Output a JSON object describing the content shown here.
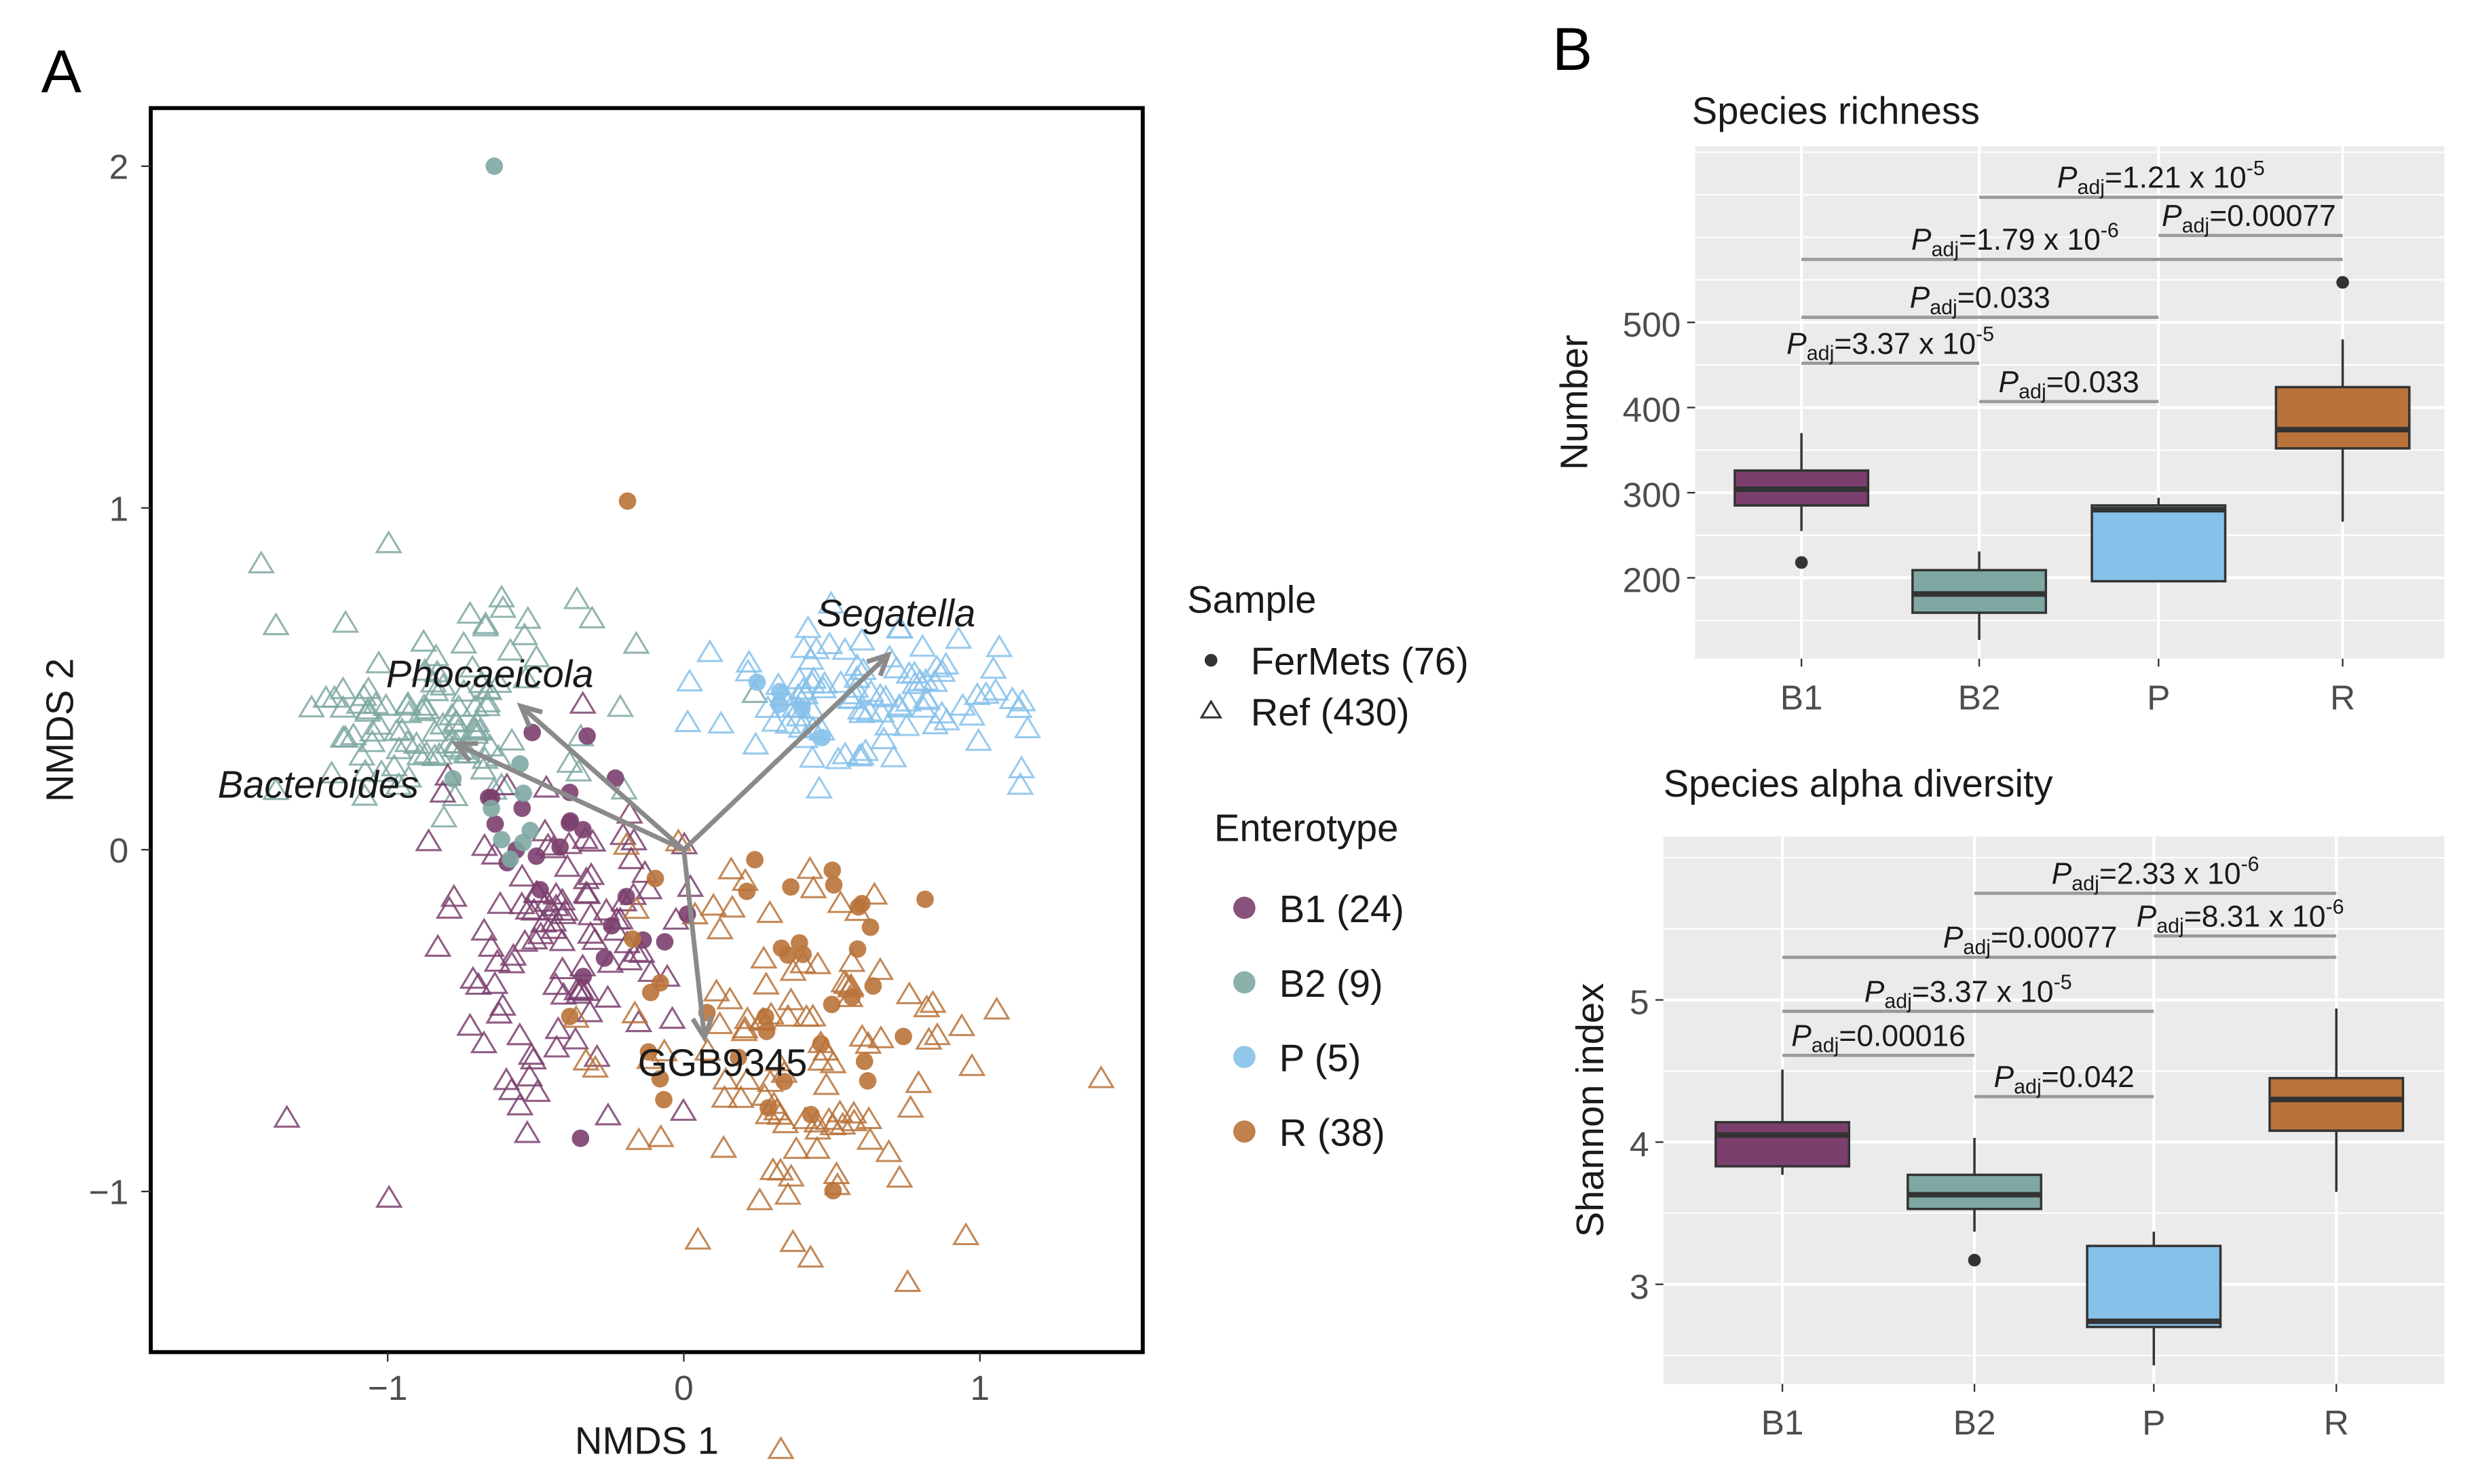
{
  "colors": {
    "B1": "#7b3f6e",
    "B2": "#7fa8a3",
    "P": "#86c1ea",
    "R": "#b9733a",
    "bar": "#9a9a9a",
    "panel": "#ebebeb"
  },
  "panels": {
    "a_label": "A",
    "b_label": "B"
  },
  "chart_data": [
    {
      "type": "scatter",
      "title": "",
      "xlabel": "NMDS 1",
      "ylabel": "NMDS 2",
      "xlim": [
        -1.8,
        1.55
      ],
      "ylim": [
        -1.47,
        2.17
      ],
      "xticks": [
        {
          "v": -1,
          "label": "−1"
        },
        {
          "v": 0,
          "label": "0"
        },
        {
          "v": 1,
          "label": "1"
        }
      ],
      "yticks": [
        {
          "v": -1,
          "label": "−1"
        },
        {
          "v": 0,
          "label": "0"
        },
        {
          "v": 1,
          "label": "1"
        },
        {
          "v": 2,
          "label": "2"
        }
      ],
      "grid": false,
      "legend": {
        "placement": "right",
        "sample_title": "Sample",
        "sample_items": [
          {
            "label": "FerMets (76)",
            "shape": "dot"
          },
          {
            "label": "Ref (430)",
            "shape": "triangle"
          }
        ],
        "enterotype_title": "Enterotype",
        "enterotype_items": [
          {
            "key": "B1",
            "label": "B1 (24)"
          },
          {
            "key": "B2",
            "label": "B2 (9)"
          },
          {
            "key": "P",
            "label": "P (5)"
          },
          {
            "key": "R",
            "label": "R (38)"
          }
        ]
      },
      "arrows": [
        {
          "label": "Segatella",
          "x": 0.69,
          "y": 0.57,
          "italic": true
        },
        {
          "label": "Phocaeicola",
          "x": -0.55,
          "y": 0.42,
          "italic": true
        },
        {
          "label": "Bacteroides",
          "x": -0.77,
          "y": 0.31,
          "italic": true
        },
        {
          "label": "GGB9345",
          "x": 0.07,
          "y": -0.55,
          "italic": false
        }
      ],
      "groups_approx": [
        {
          "enterotype": "B2",
          "sample": "Ref",
          "n": 110,
          "center": [
            -0.85,
            0.4
          ],
          "sd": [
            0.28,
            0.15
          ]
        },
        {
          "enterotype": "P",
          "sample": "Ref",
          "n": 100,
          "center": [
            0.65,
            0.45
          ],
          "sd": [
            0.28,
            0.11
          ]
        },
        {
          "enterotype": "B1",
          "sample": "Ref",
          "n": 110,
          "center": [
            -0.4,
            -0.25
          ],
          "sd": [
            0.22,
            0.22
          ]
        },
        {
          "enterotype": "R",
          "sample": "Ref",
          "n": 110,
          "center": [
            0.4,
            -0.62
          ],
          "sd": [
            0.32,
            0.28
          ]
        },
        {
          "enterotype": "B1",
          "sample": "FerMets",
          "n": 24,
          "center": [
            -0.35,
            -0.05
          ],
          "sd": [
            0.18,
            0.25
          ]
        },
        {
          "enterotype": "B2",
          "sample": "FerMets",
          "n": 8,
          "center": [
            -0.6,
            0.1
          ],
          "sd": [
            0.15,
            0.12
          ]
        },
        {
          "enterotype": "B2",
          "sample": "FerMets",
          "n": 1,
          "center": [
            -0.64,
            2.0
          ],
          "sd": [
            0,
            0
          ]
        },
        {
          "enterotype": "P",
          "sample": "FerMets",
          "n": 5,
          "center": [
            0.4,
            0.4
          ],
          "sd": [
            0.12,
            0.1
          ]
        },
        {
          "enterotype": "R",
          "sample": "FerMets",
          "n": 37,
          "center": [
            0.3,
            -0.5
          ],
          "sd": [
            0.28,
            0.3
          ]
        },
        {
          "enterotype": "R",
          "sample": "FerMets",
          "n": 1,
          "center": [
            -0.19,
            1.02
          ],
          "sd": [
            0,
            0
          ]
        }
      ]
    },
    {
      "type": "box",
      "title": "Species richness",
      "xlabel": "",
      "ylabel": "Number",
      "categories": [
        "B1",
        "B2",
        "P",
        "R"
      ],
      "ylim": [
        105,
        707
      ],
      "yticks": [
        200,
        300,
        400,
        500
      ],
      "boxes": [
        {
          "min": 255,
          "q1": 285,
          "median": 304,
          "q3": 326,
          "max": 370,
          "outliers": [
            218
          ]
        },
        {
          "min": 127,
          "q1": 159,
          "median": 181,
          "q3": 209,
          "max": 231,
          "outliers": []
        },
        {
          "min": 196,
          "q1": 196,
          "median": 280,
          "q3": 285,
          "max": 294,
          "outliers": []
        },
        {
          "min": 266,
          "q1": 352,
          "median": 374,
          "q3": 424,
          "max": 480,
          "outliers": [
            547
          ]
        }
      ],
      "comparisons": [
        {
          "from": 1,
          "to": 3,
          "y": 647,
          "p": "P",
          "sub": "adj",
          "val": "=1.21 x 10",
          "exp": "-5"
        },
        {
          "from": 2,
          "to": 3,
          "y": 602,
          "p": "P",
          "sub": "adj",
          "val": "=0.00077",
          "exp": ""
        },
        {
          "from": 0,
          "to": 3,
          "y": 574,
          "p": "P",
          "sub": "adj",
          "val": "=1.79 x 10",
          "exp": "-6"
        },
        {
          "from": 0,
          "to": 2,
          "y": 506,
          "p": "P",
          "sub": "adj",
          "val": "=0.033",
          "exp": ""
        },
        {
          "from": 0,
          "to": 1,
          "y": 452,
          "p": "P",
          "sub": "adj",
          "val": "=3.37 x 10",
          "exp": "-5"
        },
        {
          "from": 1,
          "to": 2,
          "y": 407,
          "p": "P",
          "sub": "adj",
          "val": "=0.033",
          "exp": ""
        }
      ]
    },
    {
      "type": "box",
      "title": "Species alpha diversity",
      "xlabel": "",
      "ylabel": "Shannon index",
      "categories": [
        "B1",
        "B2",
        "P",
        "R"
      ],
      "ylim": [
        2.3,
        6.15
      ],
      "yticks": [
        3,
        4,
        5
      ],
      "boxes": [
        {
          "min": 3.77,
          "q1": 3.83,
          "median": 4.05,
          "q3": 4.14,
          "max": 4.51,
          "outliers": []
        },
        {
          "min": 3.37,
          "q1": 3.53,
          "median": 3.63,
          "q3": 3.77,
          "max": 4.03,
          "outliers": [
            3.17
          ]
        },
        {
          "min": 2.43,
          "q1": 2.7,
          "median": 2.74,
          "q3": 3.27,
          "max": 3.37,
          "outliers": []
        },
        {
          "min": 3.65,
          "q1": 4.08,
          "median": 4.3,
          "q3": 4.45,
          "max": 4.94,
          "outliers": []
        }
      ],
      "comparisons": [
        {
          "from": 1,
          "to": 3,
          "y": 5.75,
          "p": "P",
          "sub": "adj",
          "val": "=2.33 x 10",
          "exp": "-6"
        },
        {
          "from": 2,
          "to": 3,
          "y": 5.45,
          "p": "P",
          "sub": "adj",
          "val": "=8.31 x 10",
          "exp": "-6"
        },
        {
          "from": 0,
          "to": 3,
          "y": 5.3,
          "p": "P",
          "sub": "adj",
          "val": "=0.00077",
          "exp": ""
        },
        {
          "from": 0,
          "to": 2,
          "y": 4.92,
          "p": "P",
          "sub": "adj",
          "val": "=3.37 x 10",
          "exp": "-5"
        },
        {
          "from": 0,
          "to": 1,
          "y": 4.61,
          "p": "P",
          "sub": "adj",
          "val": "=0.00016",
          "exp": ""
        },
        {
          "from": 1,
          "to": 2,
          "y": 4.32,
          "p": "P",
          "sub": "adj",
          "val": "=0.042",
          "exp": ""
        }
      ]
    }
  ]
}
